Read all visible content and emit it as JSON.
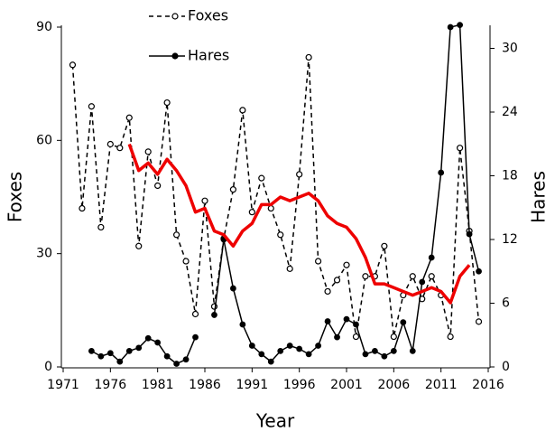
{
  "chart_data": {
    "type": "line",
    "x_label": "Year",
    "y_label": "Foxes",
    "y2_label": "Hares",
    "x": [
      1972,
      1973,
      1974,
      1975,
      1976,
      1977,
      1978,
      1979,
      1980,
      1981,
      1982,
      1983,
      1984,
      1985,
      1986,
      1987,
      1988,
      1989,
      1990,
      1991,
      1992,
      1993,
      1994,
      1995,
      1996,
      1997,
      1998,
      1999,
      2000,
      2001,
      2002,
      2003,
      2004,
      2005,
      2006,
      2007,
      2008,
      2009,
      2010,
      2011,
      2012,
      2013,
      2014,
      2015
    ],
    "series": [
      {
        "name": "Foxes",
        "color": "#000000",
        "dashed": true,
        "marker": "open",
        "values": [
          80,
          42,
          69,
          37,
          59,
          58,
          66,
          32,
          57,
          48,
          70,
          35,
          28,
          14,
          44,
          16,
          34,
          47,
          68,
          41,
          50,
          42,
          35,
          26,
          51,
          82,
          28,
          20,
          23,
          27,
          8,
          24,
          24,
          32,
          8,
          19,
          24,
          18,
          24,
          19,
          8,
          58,
          36,
          12
        ]
      },
      {
        "name": "Hares",
        "color": "#000000",
        "dashed": false,
        "marker": "filled",
        "axis": "y2",
        "values": [
          null,
          null,
          1.5,
          1,
          1.3,
          0.5,
          1.5,
          1.8,
          2.7,
          2.3,
          1,
          0.3,
          0.7,
          2.8,
          null,
          4.9,
          12,
          7.4,
          4,
          2,
          1.2,
          0.5,
          1.5,
          2,
          1.7,
          1.2,
          2,
          4.3,
          2.8,
          4.5,
          4,
          1.2,
          1.5,
          1,
          1.5,
          4.2,
          1.5,
          8,
          10.3,
          18.3,
          32,
          32.2,
          12.5,
          9
        ]
      },
      {
        "color": "#ee0000",
        "dashed": false,
        "marker": "none",
        "width": 3.5,
        "values": [
          null,
          null,
          null,
          null,
          null,
          null,
          59,
          52,
          54,
          51,
          55,
          52,
          48,
          41,
          42,
          36,
          35,
          32,
          36,
          38,
          43,
          43,
          45,
          44,
          45,
          46,
          44,
          40,
          38,
          37,
          34,
          29,
          22,
          22,
          21,
          20,
          19,
          20,
          21,
          20,
          17,
          24,
          27,
          null
        ]
      }
    ],
    "xlim": [
      1971,
      2016
    ],
    "xticks": [
      1971,
      1976,
      1981,
      1986,
      1991,
      1996,
      2001,
      2006,
      2011,
      2016
    ],
    "ylim": [
      0,
      90
    ],
    "yticks": [
      0,
      30,
      60,
      90
    ],
    "y2lim": [
      0,
      32
    ],
    "y2ticks": [
      0,
      6,
      12,
      18,
      24,
      30
    ]
  }
}
